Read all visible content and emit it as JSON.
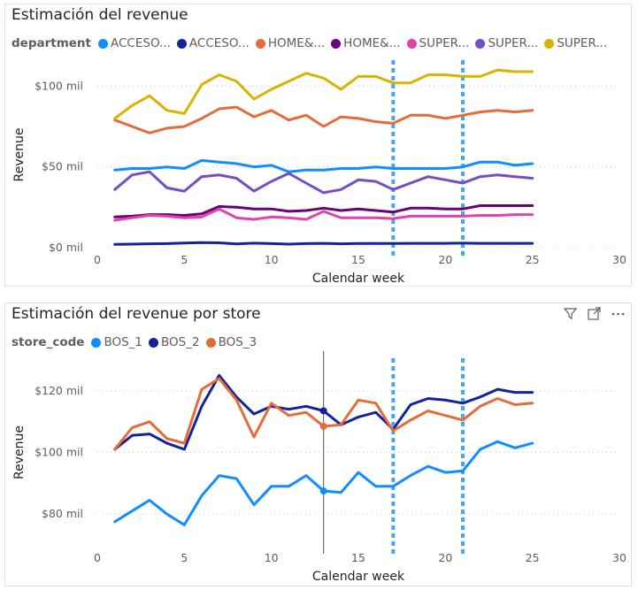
{
  "colors": {
    "grid": "#c8c6c4",
    "annotation_line": "#46a6ee",
    "crosshair": "#555555"
  },
  "charts": [
    {
      "title": "Estimación del revenue",
      "legend_title": "department",
      "legend_items": [
        {
          "label": "ACCESO...",
          "color": "#118dff"
        },
        {
          "label": "ACCESO...",
          "color": "#12239e"
        },
        {
          "label": "HOME&...",
          "color": "#e66c37"
        },
        {
          "label": "HOME&...",
          "color": "#6b007b"
        },
        {
          "label": "SUPER...",
          "color": "#e044a7"
        },
        {
          "label": "SUPER...",
          "color": "#744ec2"
        },
        {
          "label": "SUPER...",
          "color": "#d9b300"
        }
      ],
      "xlabel": "Calendar week",
      "ylabel": "Revenue",
      "y_ticks": [
        {
          "v": 0,
          "label": "$0 mil"
        },
        {
          "v": 50,
          "label": "$50 mil"
        },
        {
          "v": 100,
          "label": "$100 mil"
        }
      ],
      "x_ticks": [
        "0",
        "5",
        "10",
        "15",
        "20",
        "25",
        "30"
      ],
      "icons": []
    },
    {
      "title": "Estimación del revenue por store",
      "legend_title": "store_code",
      "legend_items": [
        {
          "label": "BOS_1",
          "color": "#118dff"
        },
        {
          "label": "BOS_2",
          "color": "#12239e"
        },
        {
          "label": "BOS_3",
          "color": "#e66c37"
        }
      ],
      "xlabel": "Calendar week",
      "ylabel": "Revenue",
      "y_ticks": [
        {
          "v": 80,
          "label": "$80 mil"
        },
        {
          "v": 100,
          "label": "$100 mil"
        },
        {
          "v": 120,
          "label": "$120 mil"
        }
      ],
      "x_ticks": [
        "0",
        "5",
        "10",
        "15",
        "20",
        "25",
        "30"
      ],
      "icons": [
        "filter-icon",
        "focus-mode-icon",
        "more-options-icon"
      ]
    }
  ],
  "chart_data": [
    {
      "type": "line",
      "title": "Estimación del revenue",
      "xlabel": "Calendar week",
      "ylabel": "Revenue",
      "xlim": [
        0,
        30
      ],
      "ylim": [
        0,
        115
      ],
      "grid": true,
      "legend_position": "top",
      "x": [
        1,
        2,
        3,
        4,
        5,
        6,
        7,
        8,
        9,
        10,
        11,
        12,
        13,
        14,
        15,
        16,
        17,
        18,
        19,
        20,
        21,
        22,
        23,
        24,
        25
      ],
      "vertical_markers": [
        17,
        21
      ],
      "series": [
        {
          "name": "ACCESO...",
          "color": "#118dff",
          "values": [
            48,
            49,
            49,
            50,
            49,
            54,
            53,
            52,
            50,
            51,
            47,
            48,
            48,
            49,
            49,
            50,
            49,
            49,
            49,
            49,
            50,
            53,
            53,
            51,
            52
          ]
        },
        {
          "name": "ACCESO...",
          "color": "#12239e",
          "values": [
            2,
            2.2,
            2.4,
            2.5,
            2.9,
            3.2,
            3,
            2.3,
            2.8,
            2.5,
            2.2,
            2.5,
            2.7,
            2.4,
            2.6,
            2.6,
            2.6,
            2.7,
            2.7,
            2.7,
            2.8,
            2.7,
            2.7,
            2.7,
            2.7
          ]
        },
        {
          "name": "HOME&...",
          "color": "#e66c37",
          "values": [
            79,
            75,
            71,
            74,
            75,
            80,
            86,
            87,
            81,
            85,
            79,
            82,
            75,
            81,
            80,
            78,
            77,
            82,
            82,
            80,
            82,
            84,
            85,
            84,
            85
          ]
        },
        {
          "name": "HOME&...",
          "color": "#6b007b",
          "values": [
            19,
            19.5,
            20.5,
            20.5,
            20,
            21,
            25.5,
            25,
            24,
            24,
            22.5,
            23,
            24.5,
            23,
            24,
            23,
            22,
            24.5,
            24.5,
            24,
            24,
            26,
            26,
            26,
            26
          ]
        },
        {
          "name": "SUPER...",
          "color": "#e044a7",
          "values": [
            17,
            18.5,
            20,
            19.5,
            18.5,
            19,
            24,
            18.5,
            17.5,
            19,
            18.5,
            17.5,
            22.5,
            18.5,
            18.5,
            18.5,
            18,
            19.5,
            19.5,
            19.5,
            19.5,
            20,
            20,
            20.5,
            20.5
          ]
        },
        {
          "name": "SUPER...",
          "color": "#744ec2",
          "values": [
            36,
            45,
            47,
            37,
            35,
            44,
            45,
            43,
            35,
            41,
            46,
            40,
            34,
            36,
            42,
            41,
            36,
            40,
            44,
            42,
            40,
            44,
            45,
            44,
            43
          ]
        },
        {
          "name": "SUPER...",
          "color": "#d9b300",
          "values": [
            80,
            88,
            94,
            85,
            83,
            101,
            107,
            103,
            92,
            98,
            103,
            108,
            105,
            98,
            106,
            106,
            102,
            102,
            107,
            107,
            106,
            106,
            110,
            109,
            109
          ]
        }
      ]
    },
    {
      "type": "line",
      "title": "Estimación del revenue por store",
      "xlabel": "Calendar week",
      "ylabel": "Revenue",
      "xlim": [
        0,
        30
      ],
      "ylim": [
        70,
        130
      ],
      "grid": true,
      "legend_position": "top",
      "x": [
        1,
        2,
        3,
        4,
        5,
        6,
        7,
        8,
        9,
        10,
        11,
        12,
        13,
        14,
        15,
        16,
        17,
        18,
        19,
        20,
        21,
        22,
        23,
        24,
        25
      ],
      "vertical_markers": [
        17,
        21
      ],
      "hover_x": 13,
      "series": [
        {
          "name": "BOS_1",
          "color": "#118dff",
          "values": [
            77.5,
            81,
            84.5,
            80,
            76.5,
            86,
            92.5,
            91.5,
            83,
            89,
            89,
            92.5,
            87.5,
            87,
            93.5,
            89,
            89,
            92.5,
            95.5,
            93.5,
            94,
            101,
            103.5,
            101.5,
            103
          ]
        },
        {
          "name": "BOS_2",
          "color": "#12239e",
          "values": [
            101,
            105.5,
            106,
            103,
            101,
            115,
            125,
            118,
            112.5,
            115,
            114,
            115,
            113.5,
            109,
            111.5,
            113,
            107.5,
            115.5,
            117.5,
            117,
            116,
            118,
            120.5,
            119.5,
            119.5
          ]
        },
        {
          "name": "BOS_3",
          "color": "#e66c37",
          "values": [
            101,
            108,
            110,
            104.5,
            103,
            120.5,
            124,
            117,
            105,
            116,
            112,
            113,
            108.5,
            109,
            117,
            116,
            107,
            110.5,
            113.5,
            112,
            110.5,
            115,
            117.5,
            115.5,
            116
          ]
        }
      ]
    }
  ]
}
